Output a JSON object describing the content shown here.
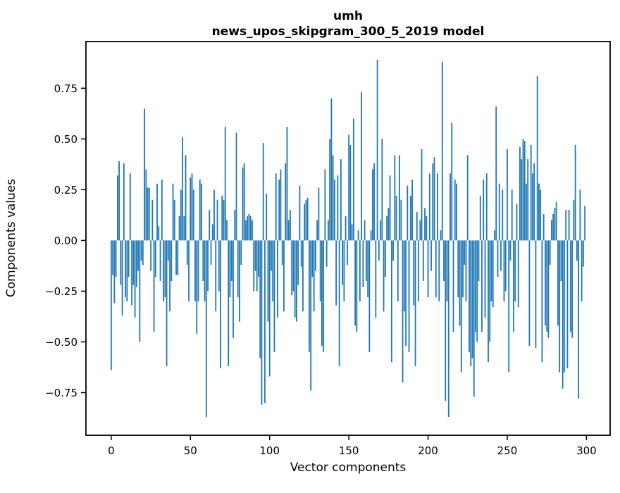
{
  "chart_data": {
    "type": "bar",
    "title": "umh",
    "subtitle": "news_upos_skipgram_300_5_2019 model",
    "xlabel": "Vector components",
    "ylabel": "Components values",
    "bar_color": "#1f77b4",
    "axis_color": "#000000",
    "xlim": [
      -15.95,
      314.95
    ],
    "ylim": [
      -0.96,
      0.98
    ],
    "grid": false,
    "x_ticks": [
      0,
      50,
      100,
      150,
      200,
      250,
      300
    ],
    "x_tick_labels": [
      "0",
      "50",
      "100",
      "150",
      "200",
      "250",
      "300"
    ],
    "y_ticks": [
      0.75,
      0.5,
      0.25,
      0.0,
      -0.25,
      -0.5,
      -0.75
    ],
    "y_tick_labels": [
      "0.75",
      "0.50",
      "0.25",
      "0.00",
      "−0.25",
      "−0.50",
      "−0.75"
    ],
    "x_start": 0,
    "values": [
      -0.64,
      -0.17,
      -0.31,
      -0.18,
      0.32,
      0.39,
      -0.22,
      -0.37,
      0.38,
      -0.28,
      -0.3,
      -0.18,
      0.33,
      -0.32,
      -0.22,
      -0.38,
      -0.23,
      -0.15,
      -0.5,
      -0.1,
      -0.12,
      0.65,
      0.35,
      0.26,
      0.26,
      -0.15,
      0.2,
      -0.45,
      -0.18,
      0.28,
      0.07,
      -0.2,
      0.3,
      -0.3,
      -0.28,
      -0.62,
      -0.1,
      -0.35,
      -0.2,
      0.28,
      0.2,
      -0.17,
      -0.17,
      0.12,
      0.25,
      0.51,
      0.12,
      0.42,
      -0.12,
      -0.3,
      0.31,
      0.33,
      0.25,
      -0.3,
      -0.46,
      -0.3,
      0.3,
      0.28,
      -0.2,
      -0.3,
      -0.87,
      -0.25,
      0.15,
      -0.12,
      0.08,
      0.25,
      -0.35,
      0.2,
      -0.25,
      -0.63,
      0.22,
      0.2,
      0.56,
      0.1,
      -0.62,
      -0.28,
      -0.2,
      -0.48,
      0.15,
      0.53,
      -0.28,
      -0.4,
      -0.12,
      0.36,
      0.38,
      0.1,
      0.12,
      0.13,
      0.12,
      0.1,
      -0.25,
      -0.15,
      -0.25,
      -0.18,
      -0.58,
      -0.81,
      0.48,
      -0.8,
      0.23,
      -0.4,
      -0.67,
      -0.15,
      -0.3,
      -0.55,
      0.33,
      -0.38,
      0.3,
      0.35,
      -0.12,
      -0.35,
      0.38,
      0.56,
      0.1,
      0.15,
      -0.27,
      -0.25,
      -0.38,
      -0.4,
      -0.22,
      0.27,
      -0.13,
      -0.35,
      0.18,
      0.2,
      0.21,
      -0.55,
      -0.74,
      -0.18,
      -0.35,
      -0.15,
      0.1,
      0.26,
      -0.3,
      -0.52,
      -0.55,
      0.35,
      -0.13,
      0.1,
      0.5,
      0.7,
      0.42,
      0.3,
      -0.32,
      0.32,
      -0.62,
      0.4,
      -0.22,
      -0.3,
      0.12,
      -0.12,
      0.52,
      0.47,
      0.08,
      0.6,
      -0.42,
      -0.45,
      0.05,
      -0.3,
      0.73,
      -0.23,
      0.1,
      -0.2,
      -0.28,
      -0.55,
      0.05,
      0.35,
      0.38,
      -0.38,
      0.89,
      -0.1,
      0.1,
      0.5,
      -0.35,
      -0.18,
      0.12,
      0.16,
      0.32,
      -0.6,
      -0.1,
      0.42,
      0.22,
      -0.3,
      0.42,
      0.2,
      -0.7,
      -0.35,
      -0.52,
      0.27,
      -0.55,
      0.22,
      0.3,
      -0.32,
      -0.62,
      0.14,
      -0.3,
      0.1,
      0.45,
      -0.2,
      0.16,
      0.12,
      -0.28,
      0.33,
      -0.15,
      0.38,
      0.41,
      -0.28,
      0.33,
      -0.3,
      0.05,
      0.88,
      -0.2,
      -0.79,
      -0.3,
      -0.87,
      0.33,
      0.58,
      -0.45,
      0.3,
      0.28,
      -0.28,
      -0.42,
      -0.65,
      -0.28,
      -0.12,
      -0.3,
      0.42,
      -0.55,
      -0.62,
      -0.58,
      -0.77,
      -0.45,
      -0.5,
      -0.2,
      0.22,
      -0.45,
      0.3,
      -0.38,
      0.33,
      -0.6,
      -0.5,
      -0.3,
      -0.33,
      0.05,
      0.66,
      -0.18,
      0.28,
      -0.15,
      0.25,
      -0.3,
      -0.25,
      0.45,
      -0.65,
      -0.1,
      0.25,
      -0.45,
      -0.3,
      0.18,
      -0.33,
      0.46,
      0.4,
      0.5,
      0.49,
      0.28,
      0.4,
      -0.52,
      0.47,
      0.33,
      0.38,
      -0.53,
      0.81,
      0.28,
      0.25,
      -0.6,
      0.13,
      -0.42,
      -0.45,
      -0.48,
      -0.12,
      0.1,
      0.13,
      0.16,
      0.19,
      -0.42,
      -0.65,
      -0.2,
      -0.73,
      -0.65,
      0.15,
      -0.63,
      0.15,
      -0.45,
      -0.48,
      0.2,
      0.47,
      -0.1,
      -0.78,
      0.25,
      -0.3,
      -0.13,
      0.17
    ]
  }
}
